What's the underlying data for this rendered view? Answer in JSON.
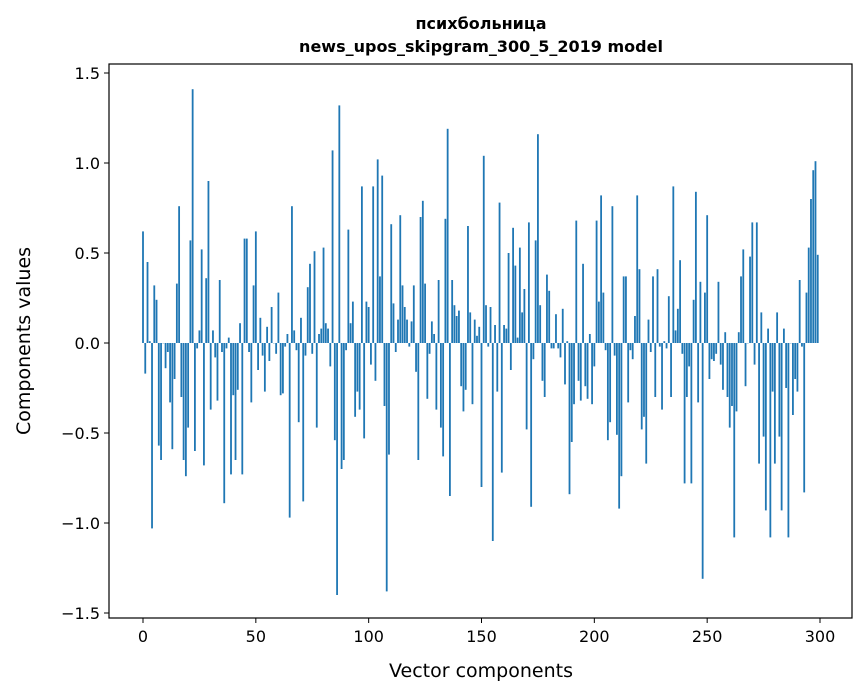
{
  "chart_data": {
    "type": "bar",
    "title": "психбольница",
    "subtitle": "news_upos_skipgram_300_5_2019 model",
    "xlabel": "Vector components",
    "ylabel": "Components values",
    "xlim": [
      -15,
      315
    ],
    "ylim": [
      -1.53,
      1.56
    ],
    "xticks": [
      0,
      50,
      100,
      150,
      200,
      250,
      300
    ],
    "yticks": [
      -1.5,
      -1.0,
      -0.5,
      0.0,
      0.5,
      1.0,
      1.5
    ],
    "xtick_labels": [
      "0",
      "50",
      "100",
      "150",
      "200",
      "250",
      "300"
    ],
    "ytick_labels": [
      "−1.5",
      "−1.0",
      "−0.5",
      "0.0",
      "0.5",
      "1.0",
      "1.5"
    ],
    "bar_color": "#1f77b4",
    "values": [
      0.62,
      -0.17,
      0.45,
      0.01,
      -1.03,
      0.32,
      0.24,
      -0.57,
      -0.65,
      0.0,
      -0.14,
      -0.05,
      -0.33,
      -0.59,
      -0.2,
      0.33,
      0.76,
      -0.3,
      -0.65,
      -0.74,
      -0.47,
      0.57,
      1.41,
      -0.6,
      -0.03,
      0.07,
      0.52,
      -0.68,
      0.36,
      0.9,
      -0.37,
      0.07,
      -0.08,
      -0.32,
      0.35,
      -0.05,
      -0.89,
      -0.03,
      0.03,
      -0.73,
      -0.29,
      -0.65,
      -0.26,
      0.11,
      -0.73,
      0.58,
      0.58,
      -0.05,
      -0.33,
      0.32,
      0.62,
      -0.15,
      0.14,
      -0.07,
      -0.27,
      0.09,
      -0.1,
      0.2,
      0.0,
      -0.06,
      0.28,
      -0.29,
      -0.28,
      -0.02,
      0.05,
      -0.97,
      0.76,
      0.07,
      -0.04,
      -0.44,
      0.14,
      -0.88,
      -0.07,
      0.31,
      0.44,
      -0.06,
      0.51,
      -0.47,
      0.05,
      0.08,
      0.53,
      0.11,
      0.08,
      -0.13,
      1.07,
      -0.54,
      -1.4,
      1.32,
      -0.7,
      -0.65,
      -0.04,
      0.63,
      0.11,
      0.23,
      -0.41,
      -0.27,
      -0.37,
      0.87,
      -0.53,
      0.23,
      0.2,
      -0.12,
      0.87,
      -0.21,
      1.02,
      0.37,
      0.93,
      -0.35,
      -1.38,
      -0.62,
      0.66,
      0.22,
      -0.05,
      0.13,
      0.71,
      0.32,
      0.2,
      0.13,
      -0.02,
      0.12,
      0.32,
      -0.16,
      -0.65,
      0.7,
      0.79,
      0.33,
      -0.31,
      -0.06,
      0.12,
      0.05,
      -0.37,
      0.35,
      -0.47,
      -0.63,
      0.69,
      1.19,
      -0.85,
      0.35,
      0.21,
      0.15,
      0.18,
      -0.24,
      -0.38,
      -0.26,
      0.65,
      0.17,
      -0.34,
      0.13,
      0.04,
      0.09,
      -0.8,
      1.04,
      0.21,
      -0.02,
      0.2,
      -1.1,
      0.1,
      -0.27,
      0.78,
      -0.72,
      0.1,
      0.08,
      0.5,
      -0.15,
      0.64,
      0.43,
      0.03,
      0.53,
      0.17,
      0.3,
      -0.48,
      0.67,
      -0.91,
      -0.09,
      0.57,
      1.16,
      0.21,
      -0.21,
      -0.3,
      0.38,
      0.29,
      -0.03,
      -0.03,
      0.16,
      -0.03,
      -0.08,
      0.19,
      -0.23,
      0.01,
      -0.84,
      -0.55,
      -0.34,
      0.68,
      -0.21,
      -0.32,
      0.44,
      -0.24,
      -0.31,
      0.05,
      -0.34,
      -0.13,
      0.68,
      0.23,
      0.82,
      0.28,
      -0.04,
      -0.54,
      -0.44,
      0.76,
      -0.07,
      -0.51,
      -0.92,
      -0.74,
      0.37,
      0.37,
      -0.33,
      -0.04,
      -0.09,
      0.15,
      0.82,
      0.41,
      -0.48,
      -0.41,
      -0.67,
      0.13,
      -0.05,
      0.37,
      -0.3,
      0.41,
      -0.02,
      -0.37,
      0.01,
      -0.03,
      0.26,
      -0.3,
      0.87,
      0.07,
      0.19,
      0.46,
      -0.06,
      -0.78,
      -0.3,
      -0.13,
      -0.78,
      0.24,
      0.84,
      -0.33,
      0.34,
      -1.31,
      0.28,
      0.71,
      -0.2,
      -0.09,
      -0.1,
      -0.06,
      0.34,
      -0.12,
      -0.26,
      0.06,
      -0.3,
      -0.47,
      -0.35,
      -1.08,
      -0.38,
      0.06,
      0.37,
      0.52,
      -0.24,
      0.0,
      0.48,
      0.67,
      -0.12,
      0.67,
      -0.67,
      0.17,
      -0.52,
      -0.93,
      0.08,
      -1.08,
      -0.27,
      -0.67,
      0.17,
      -0.52,
      -0.93,
      0.08,
      -0.25,
      -1.08,
      0.0,
      -0.4,
      -0.2,
      -0.27,
      0.35,
      -0.02,
      -0.83,
      0.28,
      0.53,
      0.8,
      0.96,
      1.01,
      0.49
    ]
  }
}
